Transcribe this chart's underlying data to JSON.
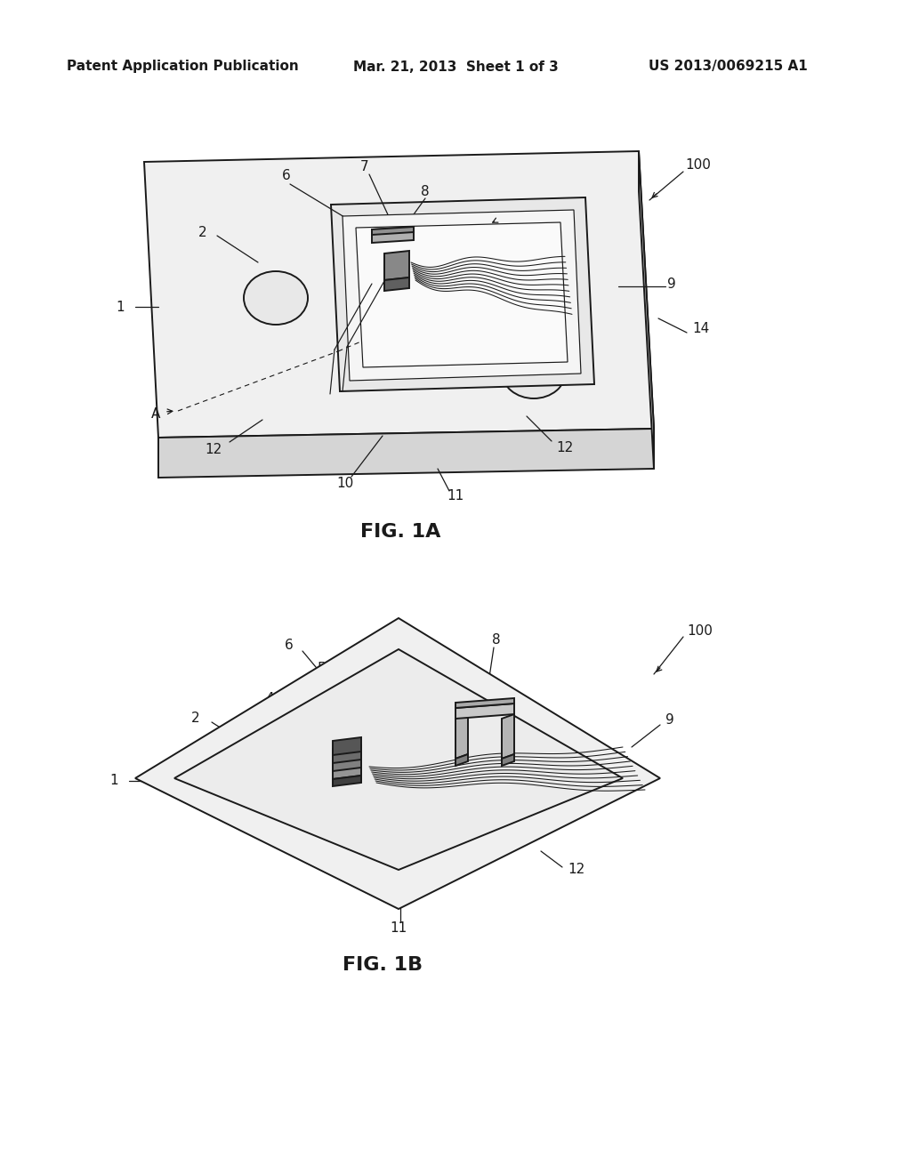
{
  "background_color": "#ffffff",
  "header_left": "Patent Application Publication",
  "header_mid": "Mar. 21, 2013  Sheet 1 of 3",
  "header_right": "US 2013/0069215 A1",
  "fig1a_label": "FIG. 1A",
  "fig1b_label": "FIG. 1B",
  "lc": "#1a1a1a",
  "lw": 1.4,
  "tlw": 0.85
}
